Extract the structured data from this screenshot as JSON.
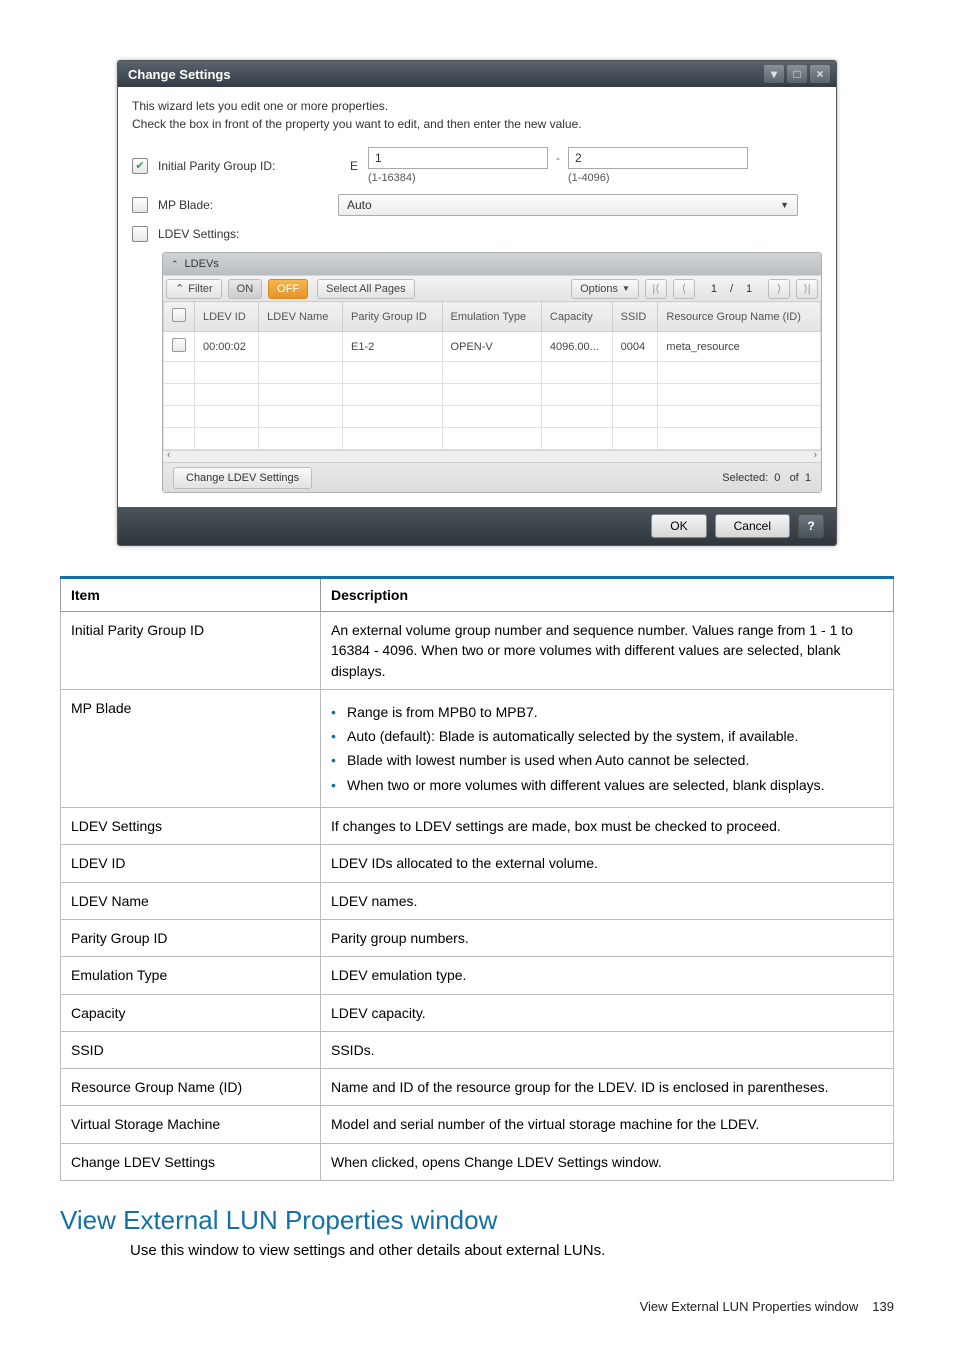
{
  "dialog": {
    "title": "Change Settings",
    "intro_line1": "This wizard lets you edit one or more properties.",
    "intro_line2": "Check the  box in front of the property you want to edit, and then enter the new value.",
    "initial_pg": {
      "label": "Initial Parity Group ID:",
      "prefix": "E",
      "val1": "1",
      "hint1": "(1-16384)",
      "val2": "2",
      "hint2": "(1-4096)"
    },
    "mp_blade": {
      "label": "MP Blade:",
      "value": "Auto"
    },
    "ldev_settings_label": "LDEV Settings:",
    "ldevs": {
      "title": "LDEVs",
      "filter": "Filter",
      "on": "ON",
      "off": "OFF",
      "select_all": "Select All Pages",
      "options": "Options",
      "pager_cur": "1",
      "pager_total": "1",
      "cols": [
        "LDEV ID",
        "LDEV Name",
        "Parity Group ID",
        "Emulation Type",
        "Capacity",
        "SSID",
        "Resource Group Name (ID)"
      ],
      "rows": [
        {
          "id": "00:00:02",
          "name": "",
          "pg": "E1-2",
          "emu": "OPEN-V",
          "cap": "4096.00...",
          "ssid": "0004",
          "rg": "meta_resource"
        }
      ],
      "change_btn": "Change LDEV Settings",
      "selected_label": "Selected:",
      "selected_n": "0",
      "of": "of",
      "total_n": "1"
    },
    "ok": "OK",
    "cancel": "Cancel"
  },
  "desc": {
    "head_item": "Item",
    "head_desc": "Description",
    "rows": [
      {
        "item": "Initial Parity Group ID",
        "desc": "An external volume group number and sequence number. Values range from 1 - 1 to 16384 - 4096. When two or more volumes with different values are selected, blank displays."
      },
      {
        "item": "MP Blade",
        "bullets": [
          "Range is from MPB0 to MPB7.",
          "Auto (default): Blade is automatically selected by the system, if available.",
          "Blade with lowest number is used when Auto cannot be selected.",
          "When two or more volumes with different values are selected, blank displays."
        ]
      },
      {
        "item": "LDEV Settings",
        "desc": "If changes to LDEV settings are made, box must be checked to proceed."
      },
      {
        "item": "LDEV ID",
        "desc": "LDEV IDs allocated to the external volume."
      },
      {
        "item": "LDEV Name",
        "desc": "LDEV names."
      },
      {
        "item": "Parity Group ID",
        "desc": "Parity group numbers."
      },
      {
        "item": "Emulation Type",
        "desc": "LDEV emulation type."
      },
      {
        "item": "Capacity",
        "desc": "LDEV capacity."
      },
      {
        "item": "SSID",
        "desc": "SSIDs."
      },
      {
        "item": "Resource Group Name (ID)",
        "desc": "Name and ID of the resource group for the LDEV. ID is enclosed in parentheses."
      },
      {
        "item": "Virtual Storage Machine",
        "desc": "Model and serial number of the virtual storage machine for the LDEV."
      },
      {
        "item": "Change LDEV Settings",
        "desc": "When clicked, opens Change LDEV Settings window."
      }
    ]
  },
  "section": {
    "title": "View External LUN Properties window",
    "body": "Use this window to view settings and other details about external LUNs."
  },
  "footer": {
    "text": "View External LUN Properties window",
    "page": "139"
  }
}
